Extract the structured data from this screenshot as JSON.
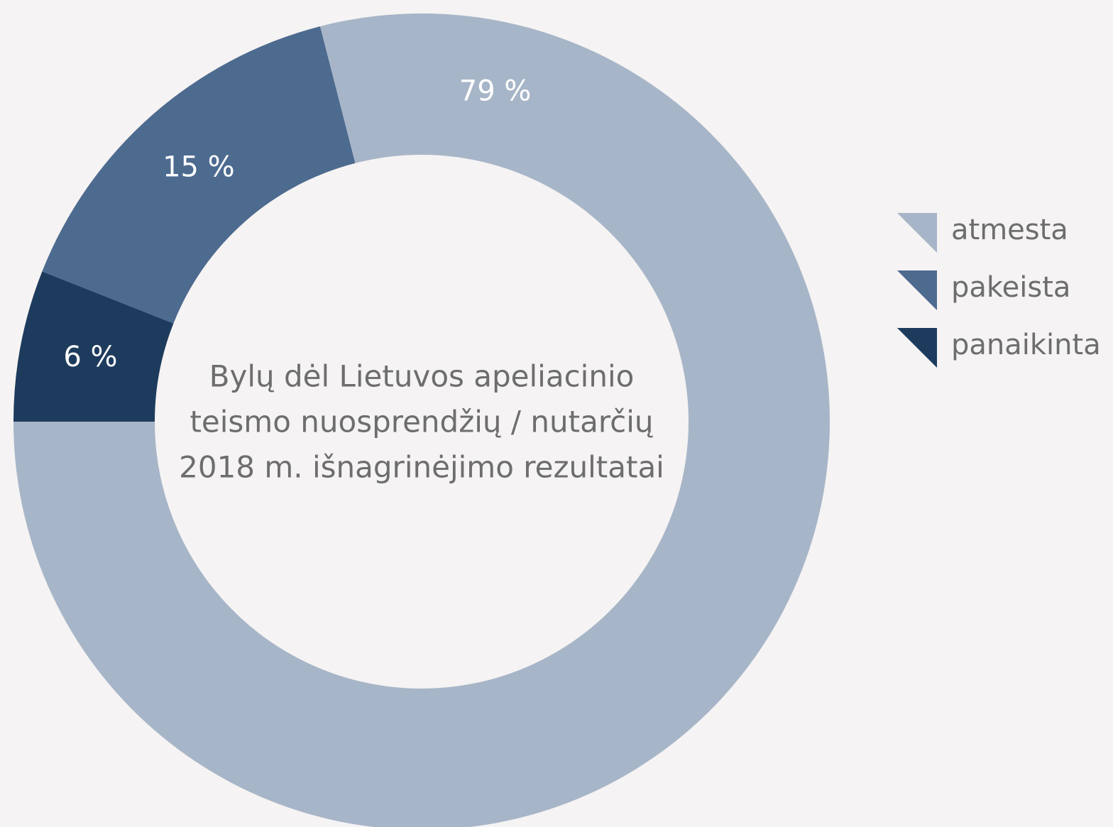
{
  "chart_data": {
    "type": "donut",
    "title": [
      "Bylų dėl Lietuvos apeliacinio",
      "teismo nuosprendžių / nutarčių",
      "2018 m. išnagrinėjimo rezultatai"
    ],
    "categories": [
      "atmesta",
      "pakeista",
      "panaikinta"
    ],
    "values": [
      79,
      15,
      6
    ],
    "value_labels": [
      "79 %",
      "15 %",
      "6 %"
    ],
    "colors": [
      "#a7b5c8",
      "#4d6a8f",
      "#1d3b5d"
    ],
    "legend": "right"
  }
}
